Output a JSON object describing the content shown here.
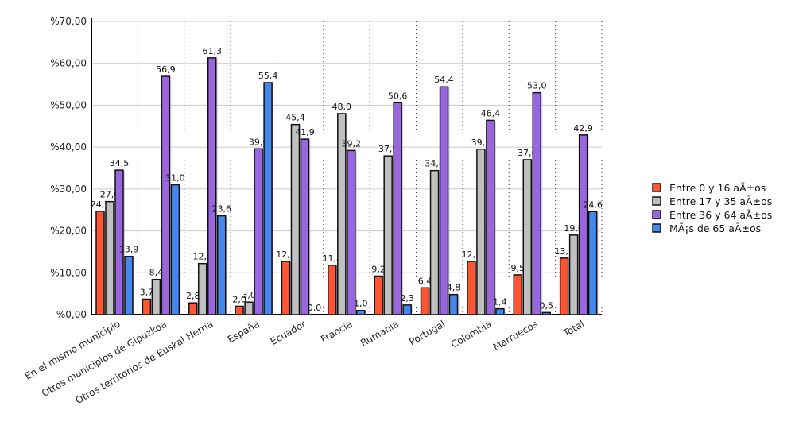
{
  "chart_data": {
    "type": "bar",
    "title": "",
    "xlabel": "",
    "ylabel": "",
    "ylim": [
      0,
      70
    ],
    "yticks": [
      "%0,00",
      "%10,00",
      "%20,00",
      "%30,00",
      "%40,00",
      "%50,00",
      "%60,00",
      "%70,00"
    ],
    "categories": [
      "En el mismo municipio",
      "Otros municipios de Gipuzkoa",
      "Otros territorios de Euskal Herria",
      "España",
      "Ecuador",
      "Francia",
      "Rumania",
      "Portugal",
      "Colombia",
      "Marruecos",
      "Total"
    ],
    "series": [
      {
        "name": "Entre 0 y 16 aÃ±os",
        "color": "#ff5533",
        "values": [
          24.7,
          3.7,
          2.8,
          2.0,
          12.7,
          11.8,
          9.2,
          6.4,
          12.7,
          9.5,
          13.5
        ]
      },
      {
        "name": "Entre 17 y 35 aÃ±os",
        "color": "#c0c0c0",
        "values": [
          27.0,
          8.4,
          12.2,
          3.0,
          45.4,
          48.0,
          37.9,
          34.4,
          39.5,
          37.0,
          19.0
        ]
      },
      {
        "name": "Entre 36 y 64 aÃ±os",
        "color": "#9966dd",
        "values": [
          34.5,
          56.9,
          61.3,
          39.6,
          41.9,
          39.2,
          50.6,
          54.4,
          46.4,
          53.0,
          42.9
        ]
      },
      {
        "name": "MÃ¡s de 65 aÃ±os",
        "color": "#4488ee",
        "values": [
          13.9,
          31.0,
          23.6,
          55.4,
          0.0,
          1.0,
          2.3,
          4.8,
          1.4,
          0.5,
          24.6
        ]
      }
    ],
    "grid": true,
    "legend": "right"
  }
}
